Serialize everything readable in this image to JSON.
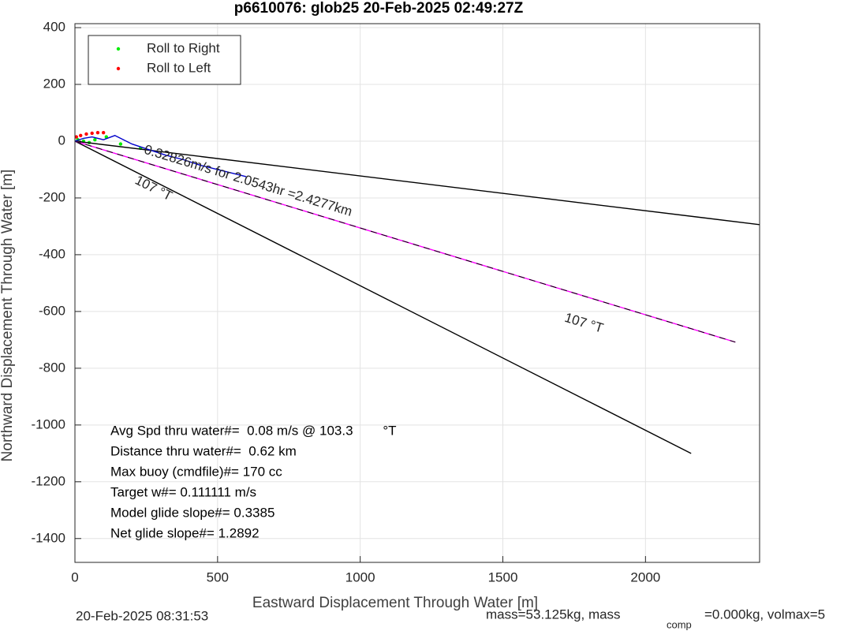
{
  "chart_data": {
    "type": "line",
    "title": "p6610076: glob25 20-Feb-2025 02:49:27Z",
    "xlabel": "Eastward Displacement Through Water [m]",
    "ylabel": "Northward Displacement Through Water [m]",
    "xlim": [
      0,
      2400
    ],
    "ylim": [
      -1484,
      414
    ],
    "xticks": [
      0,
      500,
      1000,
      1500,
      2000
    ],
    "yticks": [
      400,
      200,
      0,
      -200,
      -400,
      -600,
      -800,
      -1000,
      -1200,
      -1400
    ],
    "grid": true,
    "legend": "northwest",
    "series": [
      {
        "name": "Roll to Right",
        "color": "#00ee00",
        "style": "markers",
        "x": [
          10,
          30,
          50,
          70,
          110,
          160,
          230
        ],
        "y": [
          5,
          0,
          -5,
          5,
          15,
          -10,
          -25
        ]
      },
      {
        "name": "Roll to Left",
        "color": "#ff0000",
        "style": "markers",
        "x": [
          5,
          20,
          40,
          60,
          80,
          100
        ],
        "y": [
          15,
          20,
          25,
          28,
          30,
          30
        ]
      },
      {
        "color": "#000000",
        "style": "line",
        "x": [
          0,
          2400
        ],
        "y": [
          0,
          -294
        ]
      },
      {
        "color": "#000000",
        "style": "line",
        "x": [
          0,
          2160
        ],
        "y": [
          0,
          -1100
        ]
      },
      {
        "color": "#ff00ff",
        "style": "line",
        "x": [
          0,
          2315
        ],
        "y": [
          0,
          -708
        ]
      },
      {
        "color": "#000000",
        "style": "dashed",
        "x": [
          0,
          2315
        ],
        "y": [
          0,
          -708
        ]
      },
      {
        "color": "#0000cc",
        "style": "line",
        "x": [
          0,
          30,
          60,
          100,
          140,
          200,
          260,
          320,
          380,
          440,
          500,
          560,
          600
        ],
        "y": [
          0,
          10,
          15,
          5,
          20,
          -10,
          -30,
          -50,
          -65,
          -85,
          -100,
          -115,
          -125
        ]
      }
    ],
    "annotations": [
      "0.32826m/s for 2.0543hr =2.4277km",
      "107 °T",
      "107 °T"
    ],
    "info": [
      "Avg Spd thru water#=  0.08 m/s @ 103.3        °T",
      "Distance thru water#=  0.62 km",
      "Max buoy (cmdfile)#= 170 cc",
      "Target w#= 0.111111 m/s",
      "Model glide slope#= 0.3385",
      "Net glide slope#= 1.2892"
    ],
    "footer": [
      "20-Feb-2025 08:31:53",
      "mass=53.125kg, mass",
      "comp",
      "=0.000kg, volmax=5"
    ]
  }
}
